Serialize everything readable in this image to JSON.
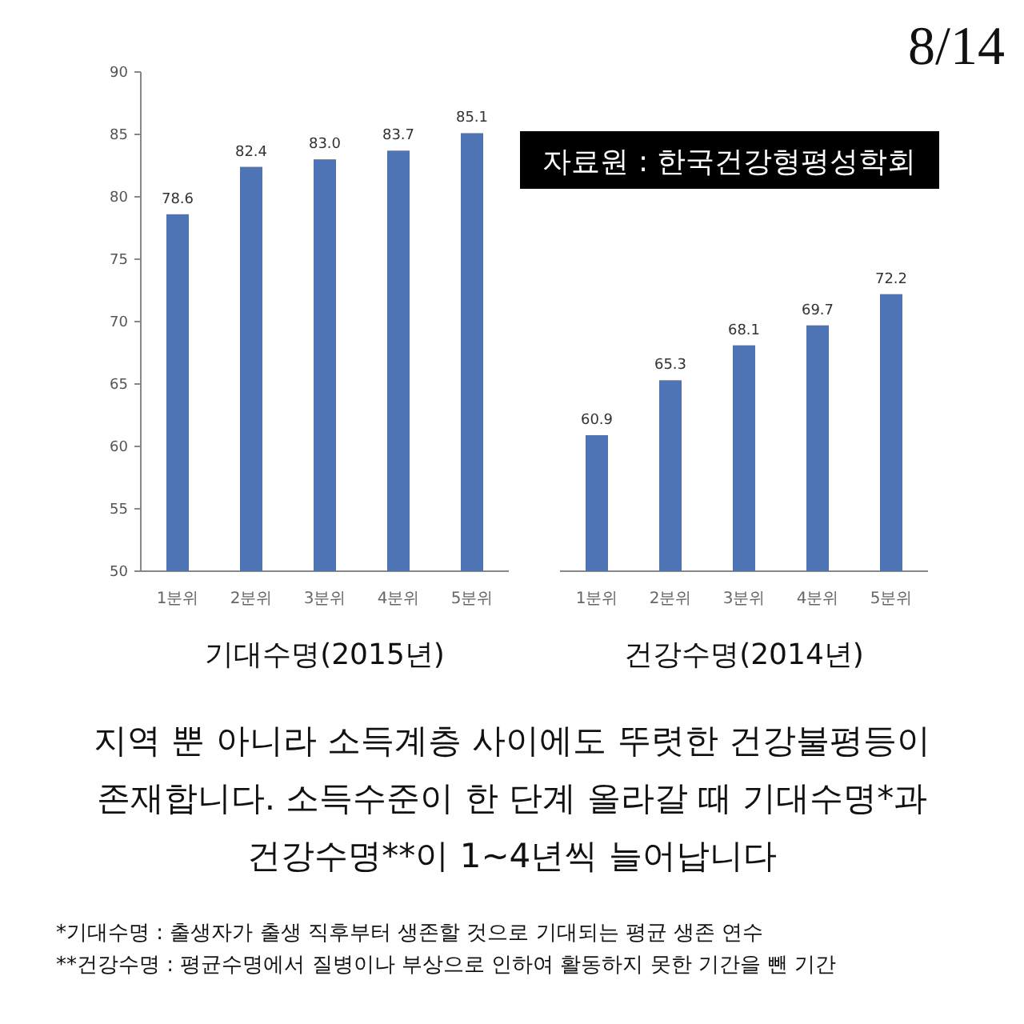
{
  "chart_data": [
    {
      "type": "bar",
      "categories": [
        "1분위",
        "2분위",
        "3분위",
        "4분위",
        "5분위"
      ],
      "values": [
        78.6,
        82.4,
        83.0,
        83.7,
        85.1
      ],
      "value_labels": [
        "78.6",
        "82.4",
        "83.0",
        "83.7",
        "85.1"
      ],
      "color": "#4f74b5",
      "ylim": [
        50,
        90
      ],
      "yticks": [
        50,
        55,
        60,
        65,
        70,
        75,
        80,
        85,
        90
      ],
      "xlabel": "기대수명(2015년)",
      "annotations": [
        "자료원 : 한국건강형평성학회"
      ]
    },
    {
      "type": "bar",
      "categories": [
        "1분위",
        "2분위",
        "3분위",
        "4분위",
        "5분위"
      ],
      "values": [
        60.9,
        65.3,
        68.1,
        69.7,
        72.2
      ],
      "color": "#4f74b5",
      "ylim": [
        50,
        90
      ],
      "tick_labels": "x",
      "data_labels": true,
      "xlabel": "건강수명(2014년)"
    },
    {
      "type": "other",
      "title": "지역 뿐 아니라 소득계층 사이에도 뚜렷한 건강불평등이 존재합니다.  소득수준이 한 단계 올라갈 때 기대수명*과 건강수명**이 1~4년씩 늘어납니다",
      "annotations": [
        "8/14",
        "*기대수명 : 출생자가 출생 직후부터 생존할 것으로 기대되는 평균 생존 연수",
        "**건강수명 : 평균수명에서 질병이나 부상으로 인하여 활동하지 못한 기간을 뺀 기간"
      ]
    }
  ]
}
